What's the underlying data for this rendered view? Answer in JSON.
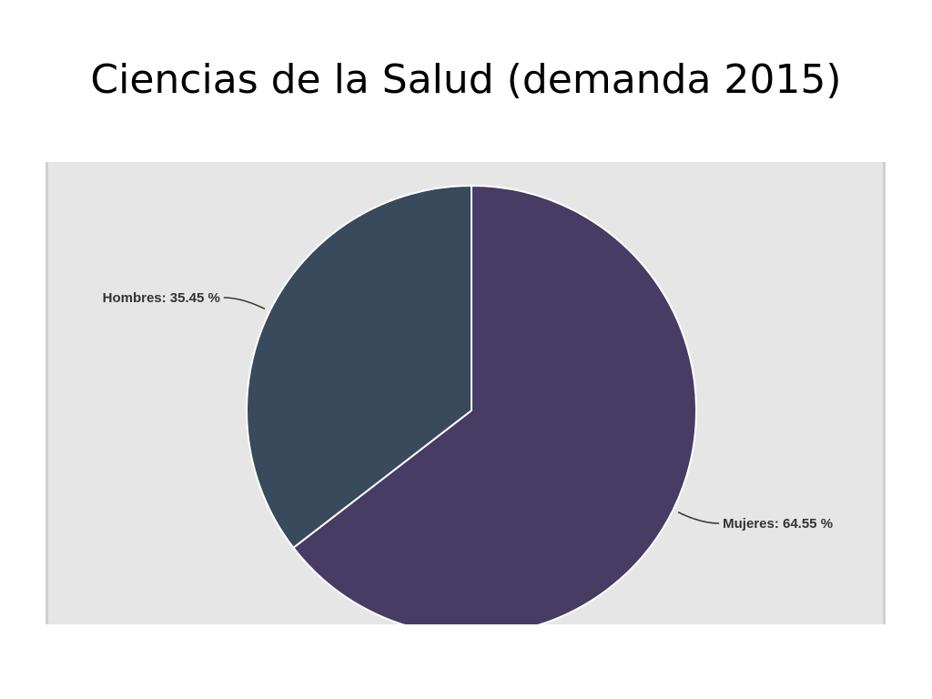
{
  "slide": {
    "title": "Ciencias de la Salud (demanda 2015)"
  },
  "chart_data": {
    "type": "pie",
    "title": "",
    "slices": [
      {
        "label": "Mujeres",
        "value": 64.55,
        "display": "Mujeres: 64.55 %",
        "color": "#463c64"
      },
      {
        "label": "Hombres",
        "value": 35.45,
        "display": "Hombres: 35.45 %",
        "color": "#384a5c"
      }
    ],
    "start_angle": "12 o'clock",
    "direction": "clockwise",
    "slice_border_color": "#ffffff",
    "label_color": "#333333",
    "background_color": "#e6e6e6"
  }
}
